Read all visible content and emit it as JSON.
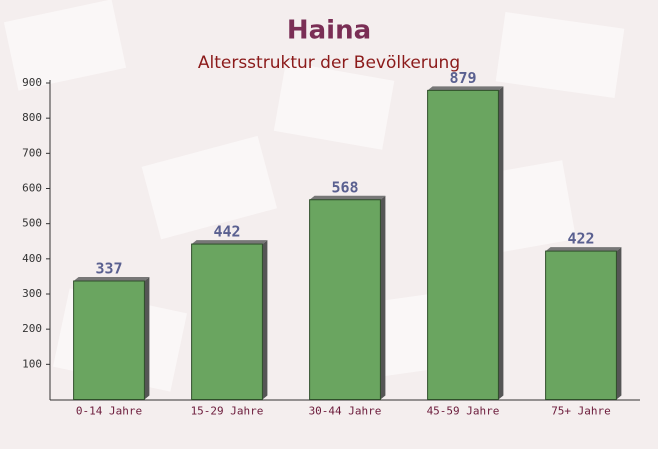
{
  "chart_data": {
    "type": "bar",
    "title": "Haina",
    "subtitle": "Altersstruktur der Bevölkerung",
    "categories": [
      "0-14 Jahre",
      "15-29 Jahre",
      "30-44 Jahre",
      "45-59 Jahre",
      "75+ Jahre"
    ],
    "values": [
      337,
      442,
      568,
      879,
      422
    ],
    "color": "#6aa560",
    "ylim": [
      0,
      900
    ],
    "yticks": [
      100,
      200,
      300,
      400,
      500,
      600,
      700,
      800,
      900
    ]
  }
}
